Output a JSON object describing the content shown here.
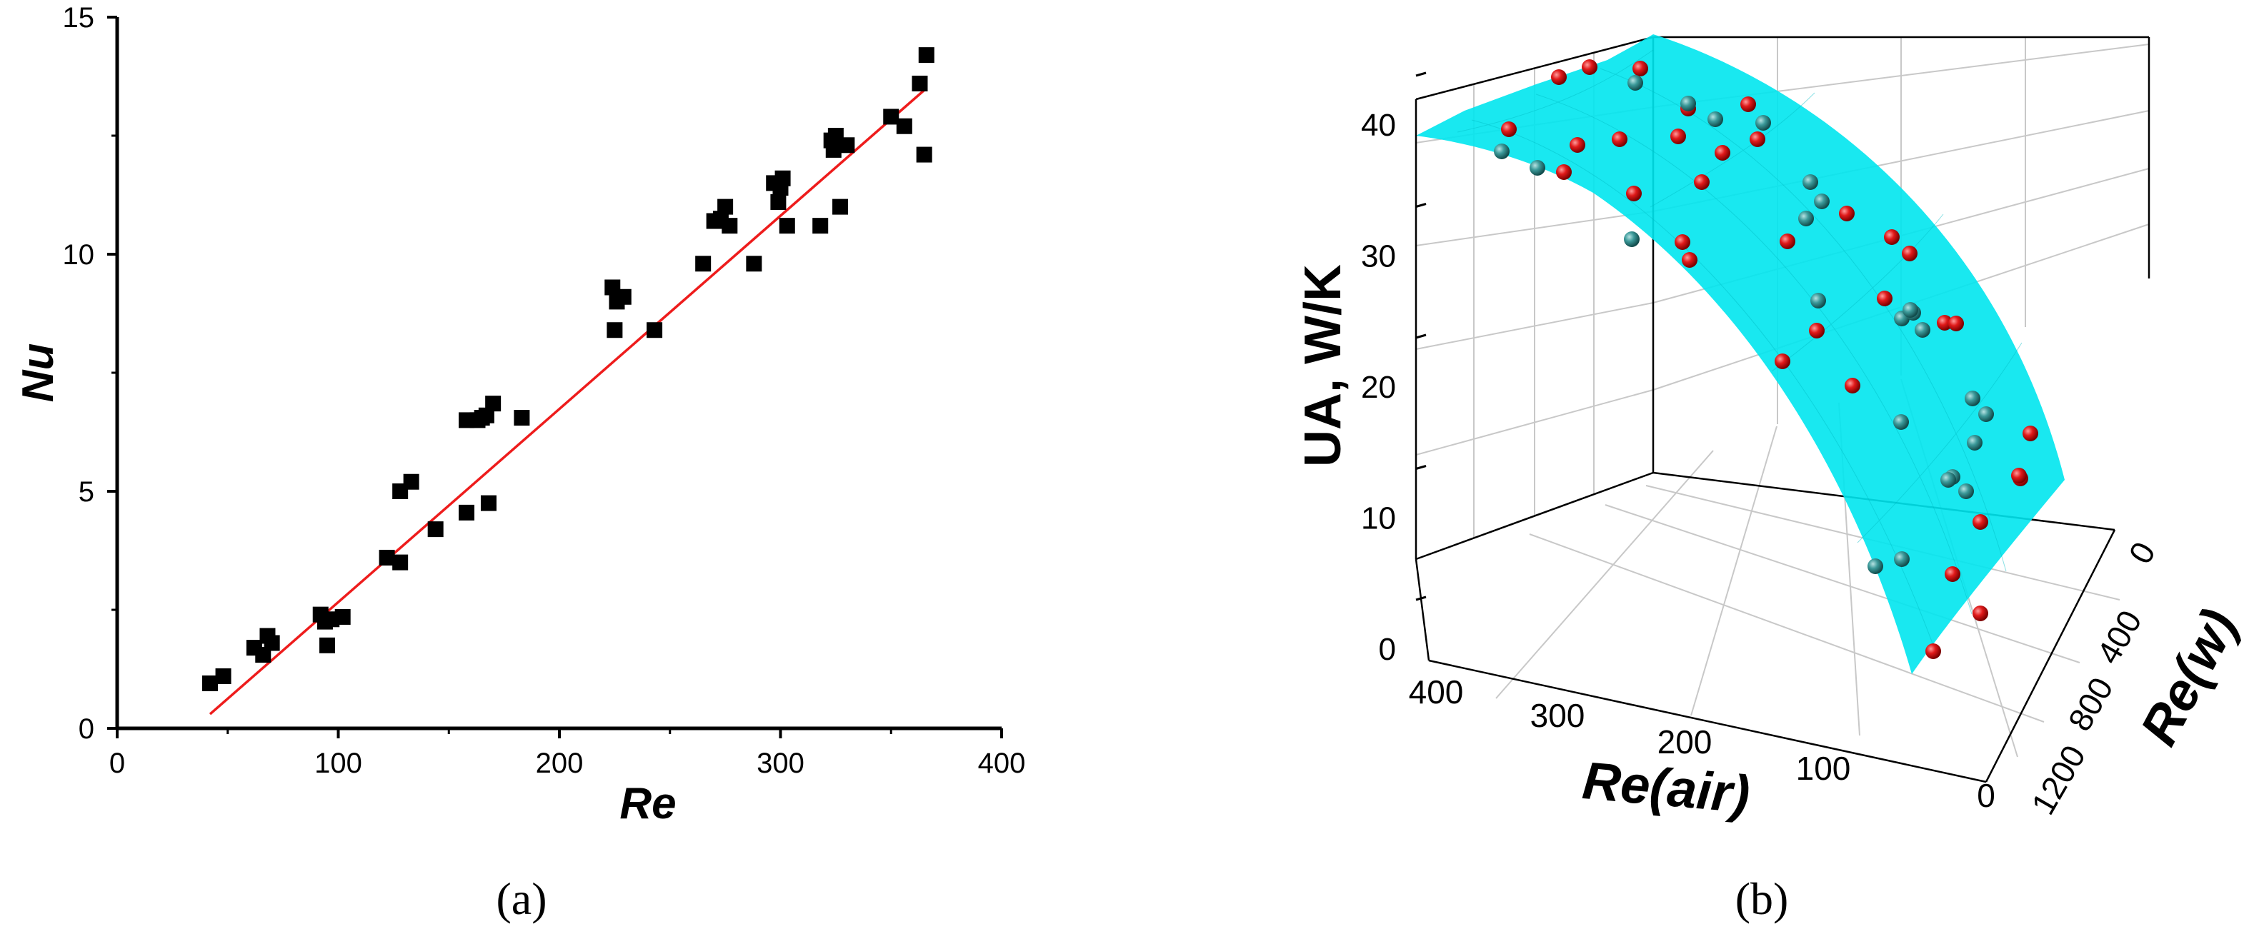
{
  "chart_data": [
    {
      "type": "scatter",
      "panel": "(a)",
      "xlabel": "Re",
      "ylabel": "Nu",
      "xlim": [
        0,
        400
      ],
      "ylim": [
        0,
        15
      ],
      "xticks": [
        "0",
        "100",
        "200",
        "300",
        "400"
      ],
      "yticks": [
        "0",
        "5",
        "10",
        "15"
      ],
      "points": [
        [
          42,
          0.95
        ],
        [
          48,
          1.1
        ],
        [
          62,
          1.7
        ],
        [
          66,
          1.55
        ],
        [
          68,
          1.95
        ],
        [
          70,
          1.8
        ],
        [
          92,
          2.4
        ],
        [
          94,
          2.25
        ],
        [
          95,
          1.75
        ],
        [
          97,
          2.3
        ],
        [
          102,
          2.35
        ],
        [
          122,
          3.6
        ],
        [
          128,
          3.5
        ],
        [
          128,
          5.0
        ],
        [
          133,
          5.2
        ],
        [
          144,
          4.2
        ],
        [
          158,
          4.55
        ],
        [
          158,
          6.5
        ],
        [
          163,
          6.5
        ],
        [
          165,
          6.55
        ],
        [
          167,
          6.6
        ],
        [
          168,
          4.75
        ],
        [
          170,
          6.85
        ],
        [
          183,
          6.55
        ],
        [
          224,
          9.3
        ],
        [
          225,
          8.4
        ],
        [
          226,
          9.0
        ],
        [
          229,
          9.1
        ],
        [
          243,
          8.4
        ],
        [
          265,
          9.8
        ],
        [
          270,
          10.7
        ],
        [
          273,
          10.75
        ],
        [
          275,
          11.0
        ],
        [
          277,
          10.6
        ],
        [
          288,
          9.8
        ],
        [
          297,
          11.5
        ],
        [
          299,
          11.1
        ],
        [
          300,
          11.4
        ],
        [
          301,
          11.6
        ],
        [
          303,
          10.6
        ],
        [
          318,
          10.6
        ],
        [
          323,
          12.4
        ],
        [
          324,
          12.2
        ],
        [
          325,
          12.5
        ],
        [
          327,
          11.0
        ],
        [
          330,
          12.3
        ],
        [
          350,
          12.9
        ],
        [
          356,
          12.7
        ],
        [
          363,
          13.6
        ],
        [
          365,
          12.1
        ],
        [
          366,
          14.2
        ]
      ],
      "fit": {
        "x": [
          42,
          366
        ],
        "y": [
          0.3,
          13.5
        ],
        "color": "#ee1c1c"
      },
      "marker_color": "#000000"
    },
    {
      "type": "surface3d",
      "panel": "(b)",
      "zlabel": "UA, W/K",
      "xlabel": "Re(air)",
      "ylabel": "Re(w)",
      "zticks": [
        "0",
        "10",
        "20",
        "30",
        "40"
      ],
      "xticks": [
        "400",
        "300",
        "200",
        "100",
        "0"
      ],
      "yticks": [
        "0",
        "400",
        "800",
        "1200"
      ],
      "surface_color": "#00e5ee",
      "point_colors": {
        "above": "#d41010",
        "below": "#2a8c8c"
      }
    }
  ]
}
